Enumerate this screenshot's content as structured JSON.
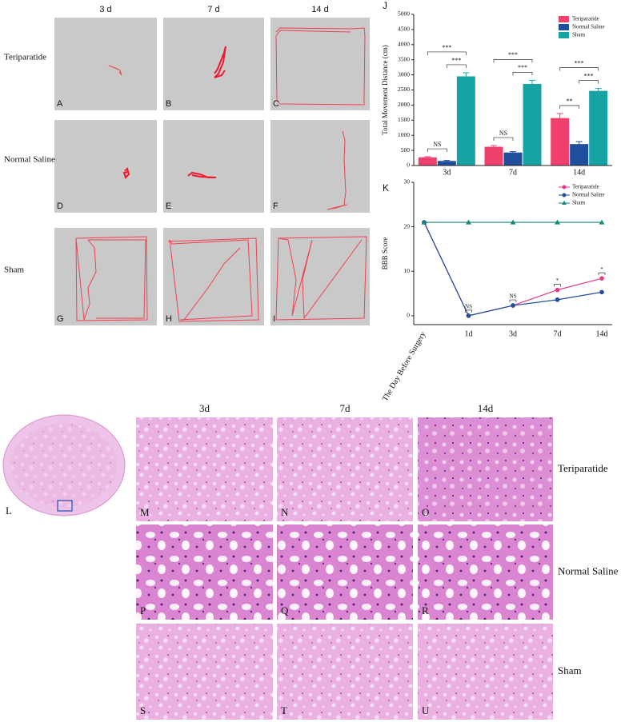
{
  "track_panels": {
    "columns": [
      "3 d",
      "7 d",
      "14 d"
    ],
    "rows": [
      "Teriparatide",
      "Normal Saline",
      "Sham"
    ],
    "letters": [
      "A",
      "B",
      "C",
      "D",
      "E",
      "F",
      "G",
      "H",
      "I"
    ]
  },
  "chart_data": [
    {
      "type": "bar",
      "panel_label": "J",
      "y_label": "Total Movement Distance (cm)",
      "categories": [
        "3d",
        "7d",
        "14d"
      ],
      "series": [
        {
          "name": "Teriparatide",
          "color": "#f0406e",
          "values": [
            270,
            620,
            1570
          ],
          "errors": [
            20,
            40,
            150
          ]
        },
        {
          "name": "Normal Saline",
          "color": "#1f4e9c",
          "values": [
            150,
            430,
            710
          ],
          "errors": [
            20,
            30,
            80
          ]
        },
        {
          "name": "Sham",
          "color": "#17a3a3",
          "values": [
            2950,
            2700,
            2470
          ],
          "errors": [
            120,
            120,
            80
          ]
        }
      ],
      "ylim": [
        0,
        5000
      ],
      "yticks": [
        0,
        500,
        1000,
        1500,
        2000,
        2500,
        3000,
        3500,
        4000,
        4500,
        5000
      ],
      "annotations": [
        {
          "text": "NS",
          "category": 0,
          "between": [
            0,
            1
          ]
        },
        {
          "text": "***",
          "category": 0,
          "between": [
            0,
            2
          ]
        },
        {
          "text": "***",
          "category": 0,
          "between": [
            1,
            2
          ]
        },
        {
          "text": "NS",
          "category": 1,
          "between": [
            0,
            1
          ]
        },
        {
          "text": "***",
          "category": 1,
          "between": [
            0,
            2
          ]
        },
        {
          "text": "***",
          "category": 1,
          "between": [
            1,
            2
          ]
        },
        {
          "text": "**",
          "category": 2,
          "between": [
            0,
            1
          ]
        },
        {
          "text": "***",
          "category": 2,
          "between": [
            0,
            2
          ]
        },
        {
          "text": "***",
          "category": 2,
          "between": [
            1,
            2
          ]
        }
      ]
    },
    {
      "type": "line",
      "panel_label": "K",
      "y_label": "BBB Score",
      "categories": [
        "The Day Before Surgery",
        "1d",
        "3d",
        "7d",
        "14d"
      ],
      "series": [
        {
          "name": "Teriparatide",
          "color": "#e8388a",
          "marker": "circle",
          "values": [
            21,
            0,
            2.3,
            5.8,
            8.4
          ]
        },
        {
          "name": "Normal Saline",
          "color": "#1f4e9c",
          "marker": "circle",
          "values": [
            21,
            0,
            2.3,
            3.6,
            5.3
          ]
        },
        {
          "name": "Sham",
          "color": "#138a7a",
          "marker": "triangle",
          "values": [
            21,
            21,
            21,
            21,
            21
          ]
        }
      ],
      "ylim": [
        -2,
        30
      ],
      "yticks": [
        0,
        10,
        20,
        30
      ],
      "annotations": [
        {
          "text": "NS",
          "category": 1
        },
        {
          "text": "NS",
          "category": 2
        },
        {
          "text": "*",
          "category": 3
        },
        {
          "text": "*",
          "category": 4
        }
      ]
    }
  ],
  "histology": {
    "overview_letter": "L",
    "columns": [
      "3d",
      "7d",
      "14d"
    ],
    "rows": [
      "Teriparatide",
      "Normal Saline",
      "Sham"
    ],
    "letters": [
      "M",
      "N",
      "O",
      "P",
      "Q",
      "R",
      "S",
      "T",
      "U"
    ]
  }
}
